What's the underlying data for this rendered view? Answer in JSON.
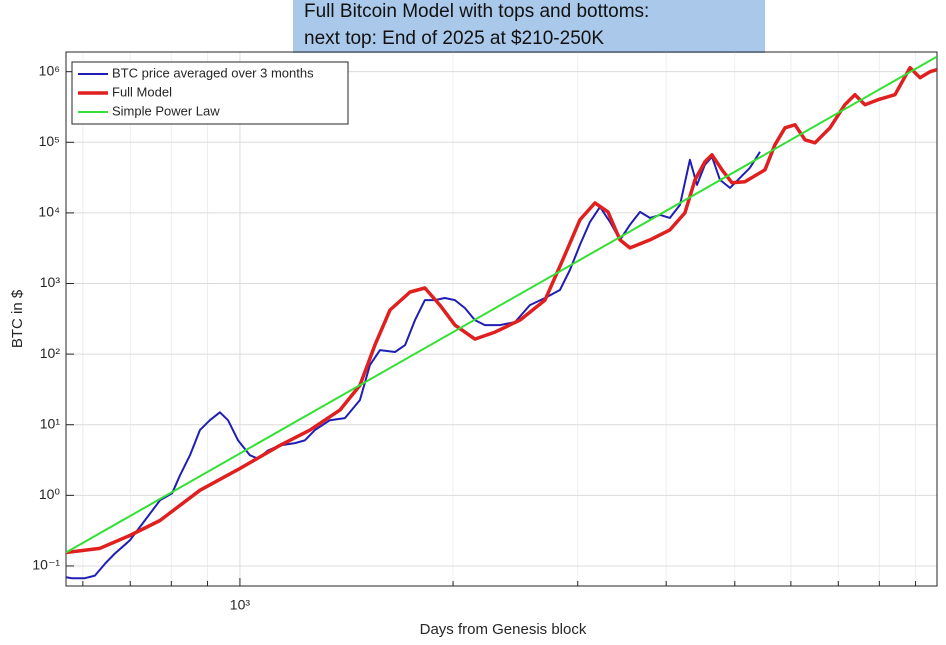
{
  "chart_data": {
    "type": "line",
    "title_lines": [
      "Full Bitcoin Model with tops and bottoms:",
      "next top: End of 2025 at $210-250K"
    ],
    "xlabel": "Days from Genesis block",
    "ylabel": "BTC in $",
    "xscale": "log",
    "yscale": "log",
    "xlim": [
      568,
      9650
    ],
    "ylim": [
      0.052,
      1900000
    ],
    "xticks": [
      {
        "value": 1000,
        "label": "10³"
      }
    ],
    "xminorticks": [
      600,
      700,
      800,
      900,
      2000,
      3000,
      4000,
      5000,
      6000,
      7000,
      8000,
      9000
    ],
    "yticks": [
      {
        "value": 0.1,
        "label": "10⁻¹"
      },
      {
        "value": 1,
        "label": "10⁰"
      },
      {
        "value": 10,
        "label": "10¹"
      },
      {
        "value": 100,
        "label": "10²"
      },
      {
        "value": 1000,
        "label": "10³"
      },
      {
        "value": 10000,
        "label": "10⁴"
      },
      {
        "value": 100000,
        "label": "10⁵"
      },
      {
        "value": 1000000,
        "label": "10⁶"
      }
    ],
    "grid": true,
    "legend": "upper left",
    "series": [
      {
        "name": "BTC price averaged over 3 months",
        "color": "#1f1fb4",
        "width": 2,
        "x": [
          568,
          579,
          604,
          624,
          645,
          666,
          699,
          734,
          771,
          802,
          823,
          850,
          878,
          907,
          937,
          962,
          994,
          1033,
          1060,
          1095,
          1139,
          1196,
          1235,
          1276,
          1340,
          1407,
          1477,
          1526,
          1577,
          1656,
          1711,
          1767,
          1825,
          1885,
          1947,
          2012,
          2079,
          2147,
          2218,
          2329,
          2446,
          2568,
          2697,
          2831,
          2924,
          3021,
          3122,
          3225,
          3332,
          3442,
          3555,
          3673,
          3794,
          3920,
          4049,
          4183,
          4321,
          4421,
          4537,
          4642,
          4764,
          4922,
          5084,
          5252,
          5426
        ],
        "values": [
          0.069,
          0.067,
          0.067,
          0.073,
          0.108,
          0.15,
          0.23,
          0.44,
          0.85,
          1.07,
          1.92,
          3.7,
          8.4,
          11.6,
          15.0,
          11.6,
          6.0,
          3.7,
          3.3,
          4.3,
          5.1,
          5.5,
          6.0,
          8.4,
          11.6,
          12.4,
          22.3,
          70,
          114,
          107,
          134,
          303,
          583,
          583,
          623,
          583,
          449,
          303,
          258,
          258,
          284,
          495,
          623,
          809,
          1554,
          3516,
          7450,
          12170,
          7450,
          4140,
          6760,
          10330,
          8490,
          9370,
          8490,
          12980,
          56440,
          24950,
          47960,
          62230,
          29380,
          22620,
          31340,
          43470,
          73300
        ]
      },
      {
        "name": "Full Model",
        "color": "#e01f1f",
        "width": 3.5,
        "x": [
          568,
          634,
          699,
          771,
          878,
          1000,
          1139,
          1256,
          1384,
          1477,
          1551,
          1629,
          1739,
          1825,
          1916,
          2012,
          2147,
          2292,
          2486,
          2697,
          2877,
          3021,
          3173,
          3310,
          3442,
          3555,
          3794,
          4049,
          4251,
          4392,
          4537,
          4642,
          4796,
          4954,
          5167,
          5515,
          5697,
          5887,
          6081,
          6282,
          6490,
          6813,
          7152,
          7389,
          7635,
          7965,
          8419,
          8838,
          9130,
          9432,
          9650
        ],
        "values": [
          0.155,
          0.177,
          0.27,
          0.44,
          1.18,
          2.4,
          5.1,
          8.4,
          16.1,
          36,
          134,
          421,
          757,
          863,
          495,
          258,
          163,
          205,
          303,
          583,
          2538,
          7960,
          13870,
          10330,
          4140,
          3190,
          4140,
          5740,
          10000,
          29380,
          52870,
          66500,
          40750,
          26650,
          27540,
          40750,
          92200,
          160600,
          177000,
          108400,
          98400,
          160600,
          340400,
          472000,
          340400,
          400800,
          472000,
          1140000,
          822600,
          1000000,
          1067000
        ]
      },
      {
        "name": "Simple Power Law",
        "color": "#33e033",
        "width": 2,
        "x": [
          568,
          9650
        ],
        "values": [
          0.155,
          1633000
        ]
      }
    ]
  }
}
